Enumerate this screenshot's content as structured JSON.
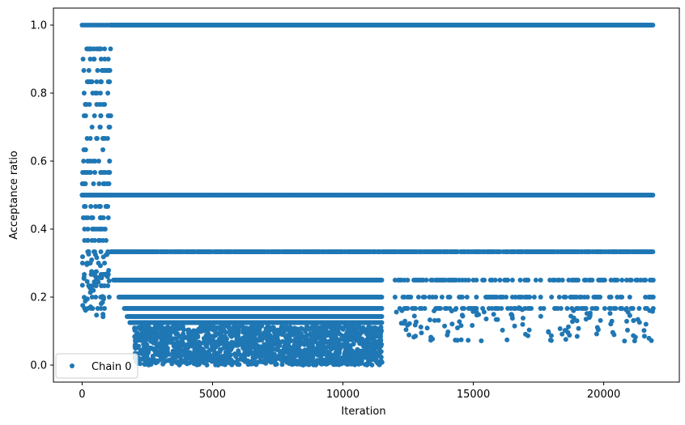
{
  "chart_data": {
    "type": "scatter",
    "xlabel": "Iteration",
    "ylabel": "Acceptance ratio",
    "xlim": [
      -1100,
      22900
    ],
    "ylim": [
      -0.05,
      1.05
    ],
    "xticks": [
      0,
      5000,
      10000,
      15000,
      20000
    ],
    "xtick_labels": [
      "0",
      "5000",
      "10000",
      "15000",
      "20000"
    ],
    "yticks": [
      0.0,
      0.2,
      0.4,
      0.6,
      0.8,
      1.0
    ],
    "ytick_labels": [
      "0.0",
      "0.2",
      "0.4",
      "0.6",
      "0.8",
      "1.0"
    ],
    "grid": false,
    "legend_position": "lower-left",
    "marker_color": "#1f77b4",
    "series": [
      {
        "name": "Chain 0",
        "color": "#1f77b4",
        "x_max": 21900,
        "bands": [
          {
            "y": 1.0,
            "x": [
              0,
              21900
            ],
            "density": "continuous"
          },
          {
            "y": 0.5,
            "x": [
              0,
              21900
            ],
            "density": "continuous"
          },
          {
            "y": 0.333,
            "x": [
              0,
              21900
            ],
            "density": "mostly-continuous"
          },
          {
            "y": 0.25,
            "x": [
              1200,
              21900
            ],
            "density": "sparse-after-12000"
          },
          {
            "y": 0.2,
            "x": [
              1400,
              21900
            ],
            "density": "sparse-after-12000"
          },
          {
            "y": 0.167,
            "x": [
              1600,
              21900
            ],
            "density": "sparse-after-12000"
          },
          {
            "y": 0.143,
            "x": [
              1700,
              11500
            ],
            "density": "dense"
          },
          {
            "y": 0.125,
            "x": [
              1800,
              11500
            ],
            "density": "dense"
          }
        ],
        "early_spread": {
          "x": [
            0,
            1100
          ],
          "y": [
            0.14,
            0.93
          ]
        },
        "low_cluster": {
          "x": [
            2000,
            11500
          ],
          "y": [
            0.0,
            0.12
          ]
        },
        "sparse_tail": {
          "x": [
            12000,
            21900
          ],
          "y": [
            0.07,
            0.2
          ]
        }
      }
    ]
  }
}
